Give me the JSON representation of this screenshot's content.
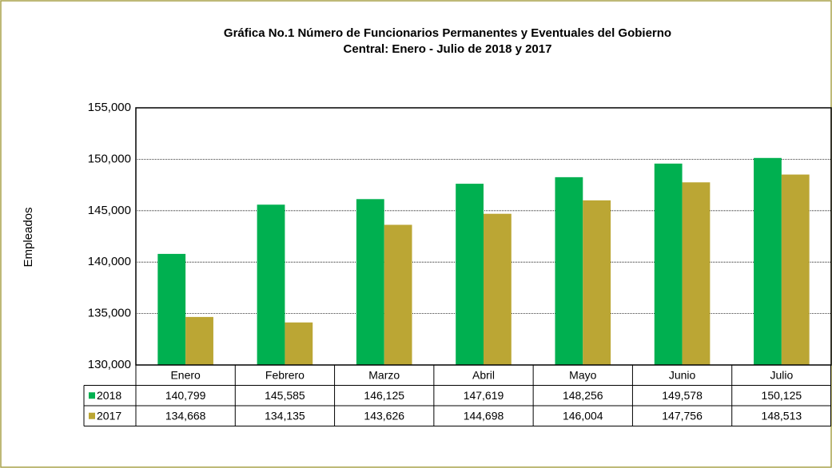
{
  "chart_data": {
    "type": "bar",
    "title": [
      "Gráfica No.1 Número de Funcionarios  Permanentes y Eventuales del Gobierno",
      "Central: Enero - Julio de 2018 y 2017"
    ],
    "y_label": "Empleados",
    "categories": [
      "Enero",
      "Febrero",
      "Marzo",
      "Abril",
      "Mayo",
      "Junio",
      "Julio"
    ],
    "series": [
      {
        "name": "2018",
        "color": "#00b050",
        "values": [
          140799,
          145585,
          146125,
          147619,
          148256,
          149578,
          150125
        ],
        "value_labels": [
          "140,799",
          "145,585",
          "146,125",
          "147,619",
          "148,256",
          "149,578",
          "150,125"
        ]
      },
      {
        "name": "2017",
        "color": "#bba634",
        "values": [
          134668,
          134135,
          143626,
          144698,
          146004,
          147756,
          148513
        ],
        "value_labels": [
          "134,668",
          "134,135",
          "143,626",
          "144,698",
          "146,004",
          "147,756",
          "148,513"
        ]
      }
    ],
    "ylim": [
      130000,
      155000
    ],
    "yticks": [
      {
        "value": 130000,
        "label": "130,000"
      },
      {
        "value": 135000,
        "label": "135,000"
      },
      {
        "value": 140000,
        "label": "140,000"
      },
      {
        "value": 145000,
        "label": "145,000"
      },
      {
        "value": 150000,
        "label": "150,000"
      },
      {
        "value": 155000,
        "label": "155,000"
      }
    ],
    "grid": true
  }
}
